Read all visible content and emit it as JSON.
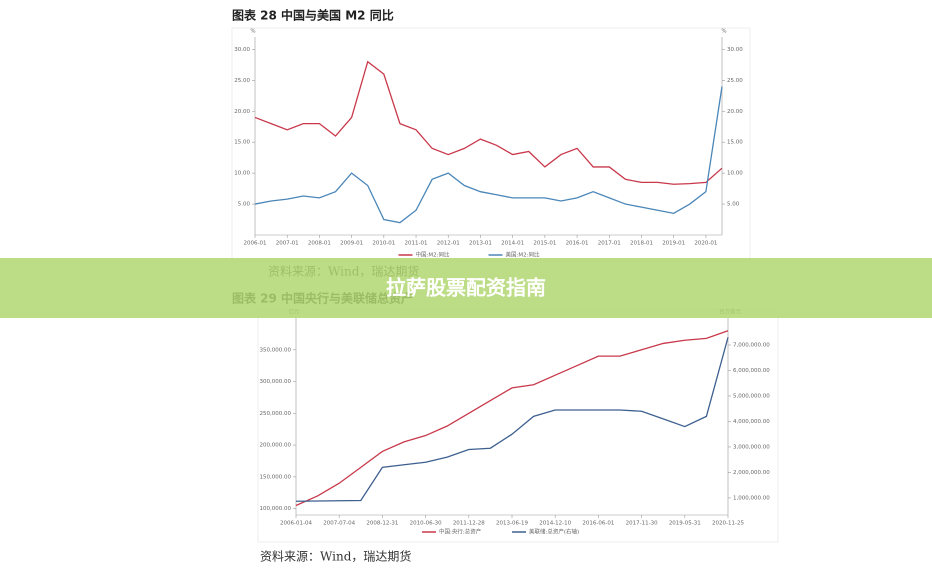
{
  "chart_data": [
    {
      "type": "line",
      "title": "图表 28  中国与美国 M2 同比",
      "source": "资料来源：Wind，瑞达期货",
      "y_unit": "%",
      "y2_unit": "%",
      "categories": [
        "2006-01",
        null,
        "2007-01",
        null,
        "2008-01",
        null,
        "2009-01",
        null,
        "2010-01",
        null,
        "2011-01",
        null,
        "2012-01",
        null,
        "2013-01",
        null,
        "2014-01",
        null,
        "2015-01",
        null,
        "2016-01",
        null,
        "2017-01",
        null,
        "2018-01",
        null,
        "2019-01",
        null,
        "2020-01",
        null
      ],
      "series": [
        {
          "name": "中国:M2:同比",
          "color": "#c8384a",
          "values": [
            19,
            18,
            17,
            18,
            18,
            16,
            19,
            28,
            26,
            18,
            17,
            14,
            13,
            14,
            15.5,
            14.5,
            13,
            13.5,
            11,
            13,
            14,
            11,
            11,
            9,
            8.5,
            8.5,
            8.2,
            8.3,
            8.5,
            10.8
          ]
        },
        {
          "name": "美国:M2:同比",
          "color": "#4a86b8",
          "axis": "y2",
          "values": [
            5,
            5.5,
            5.8,
            6.3,
            6,
            7,
            10,
            8,
            2.5,
            2,
            4,
            9,
            10,
            8,
            7,
            6.5,
            6,
            6,
            6,
            5.5,
            6,
            7,
            6,
            5,
            4.5,
            4,
            3.5,
            5,
            7,
            24
          ]
        }
      ],
      "ylim": [
        0,
        32
      ],
      "y2lim": [
        0,
        32
      ],
      "yticks": [
        {
          "value": 5,
          "label": "5.00"
        },
        {
          "value": 10,
          "label": "10.00"
        },
        {
          "value": 15,
          "label": "15.00"
        },
        {
          "value": 20,
          "label": "20.00"
        },
        {
          "value": 25,
          "label": "25.00"
        },
        {
          "value": 30,
          "label": "30.00"
        }
      ],
      "y2ticks": [
        {
          "value": 5,
          "label": "5.00"
        },
        {
          "value": 10,
          "label": "10.00"
        },
        {
          "value": 15,
          "label": "15.00"
        },
        {
          "value": 20,
          "label": "20.00"
        },
        {
          "value": 25,
          "label": "25.00"
        },
        {
          "value": 30,
          "label": "30.00"
        }
      ]
    },
    {
      "type": "line",
      "title": "图表 29  中国央行与美联储总资产",
      "source": "资料来源：Wind，瑞达期货",
      "y_unit": "亿元",
      "y2_unit": "百万美元",
      "categories": [
        "2006-01-04",
        null,
        "2007-07-04",
        null,
        "2008-12-31",
        null,
        "2010-06-30",
        null,
        "2011-12-28",
        null,
        "2013-06-19",
        null,
        "2014-12-10",
        null,
        "2016-06-01",
        null,
        "2017-11-30",
        null,
        "2019-05-31",
        null,
        "2020-11-25"
      ],
      "series": [
        {
          "name": "中国:央行:总资产",
          "color": "#c8384a",
          "values": [
            105000,
            120000,
            140000,
            165000,
            190000,
            205000,
            215000,
            230000,
            250000,
            270000,
            290000,
            295000,
            310000,
            325000,
            340000,
            340000,
            350000,
            360000,
            365000,
            368000,
            380000
          ]
        },
        {
          "name": "美联储:总资产(右轴)",
          "color": "#3d5f8f",
          "axis": "y2",
          "values": [
            870000,
            880000,
            890000,
            900000,
            2200000,
            2300000,
            2400000,
            2600000,
            2900000,
            2950000,
            3500000,
            4200000,
            4450000,
            4450000,
            4450000,
            4450000,
            4400000,
            4100000,
            3800000,
            4200000,
            7300000
          ]
        }
      ],
      "ylim": [
        90000,
        400000
      ],
      "y2lim": [
        330000,
        8060000
      ],
      "yticks": [
        {
          "value": 100000,
          "label": "100,000.00"
        },
        {
          "value": 150000,
          "label": "150,000.00"
        },
        {
          "value": 200000,
          "label": "200,000.00"
        },
        {
          "value": 250000,
          "label": "250,000.00"
        },
        {
          "value": 300000,
          "label": "300,000.00"
        },
        {
          "value": 350000,
          "label": "350,000.00"
        }
      ],
      "y2ticks": [
        {
          "value": 1000000,
          "label": "1,000,000.00"
        },
        {
          "value": 2000000,
          "label": "2,000,000.00"
        },
        {
          "value": 3000000,
          "label": "3,000,000.00"
        },
        {
          "value": 4000000,
          "label": "4,000,000.00"
        },
        {
          "value": 5000000,
          "label": "5,000,000.00"
        },
        {
          "value": 6000000,
          "label": "6,000,000.00"
        },
        {
          "value": 7000000,
          "label": "7,000,000.00"
        }
      ]
    }
  ],
  "banner": "拉萨股票配资指南"
}
